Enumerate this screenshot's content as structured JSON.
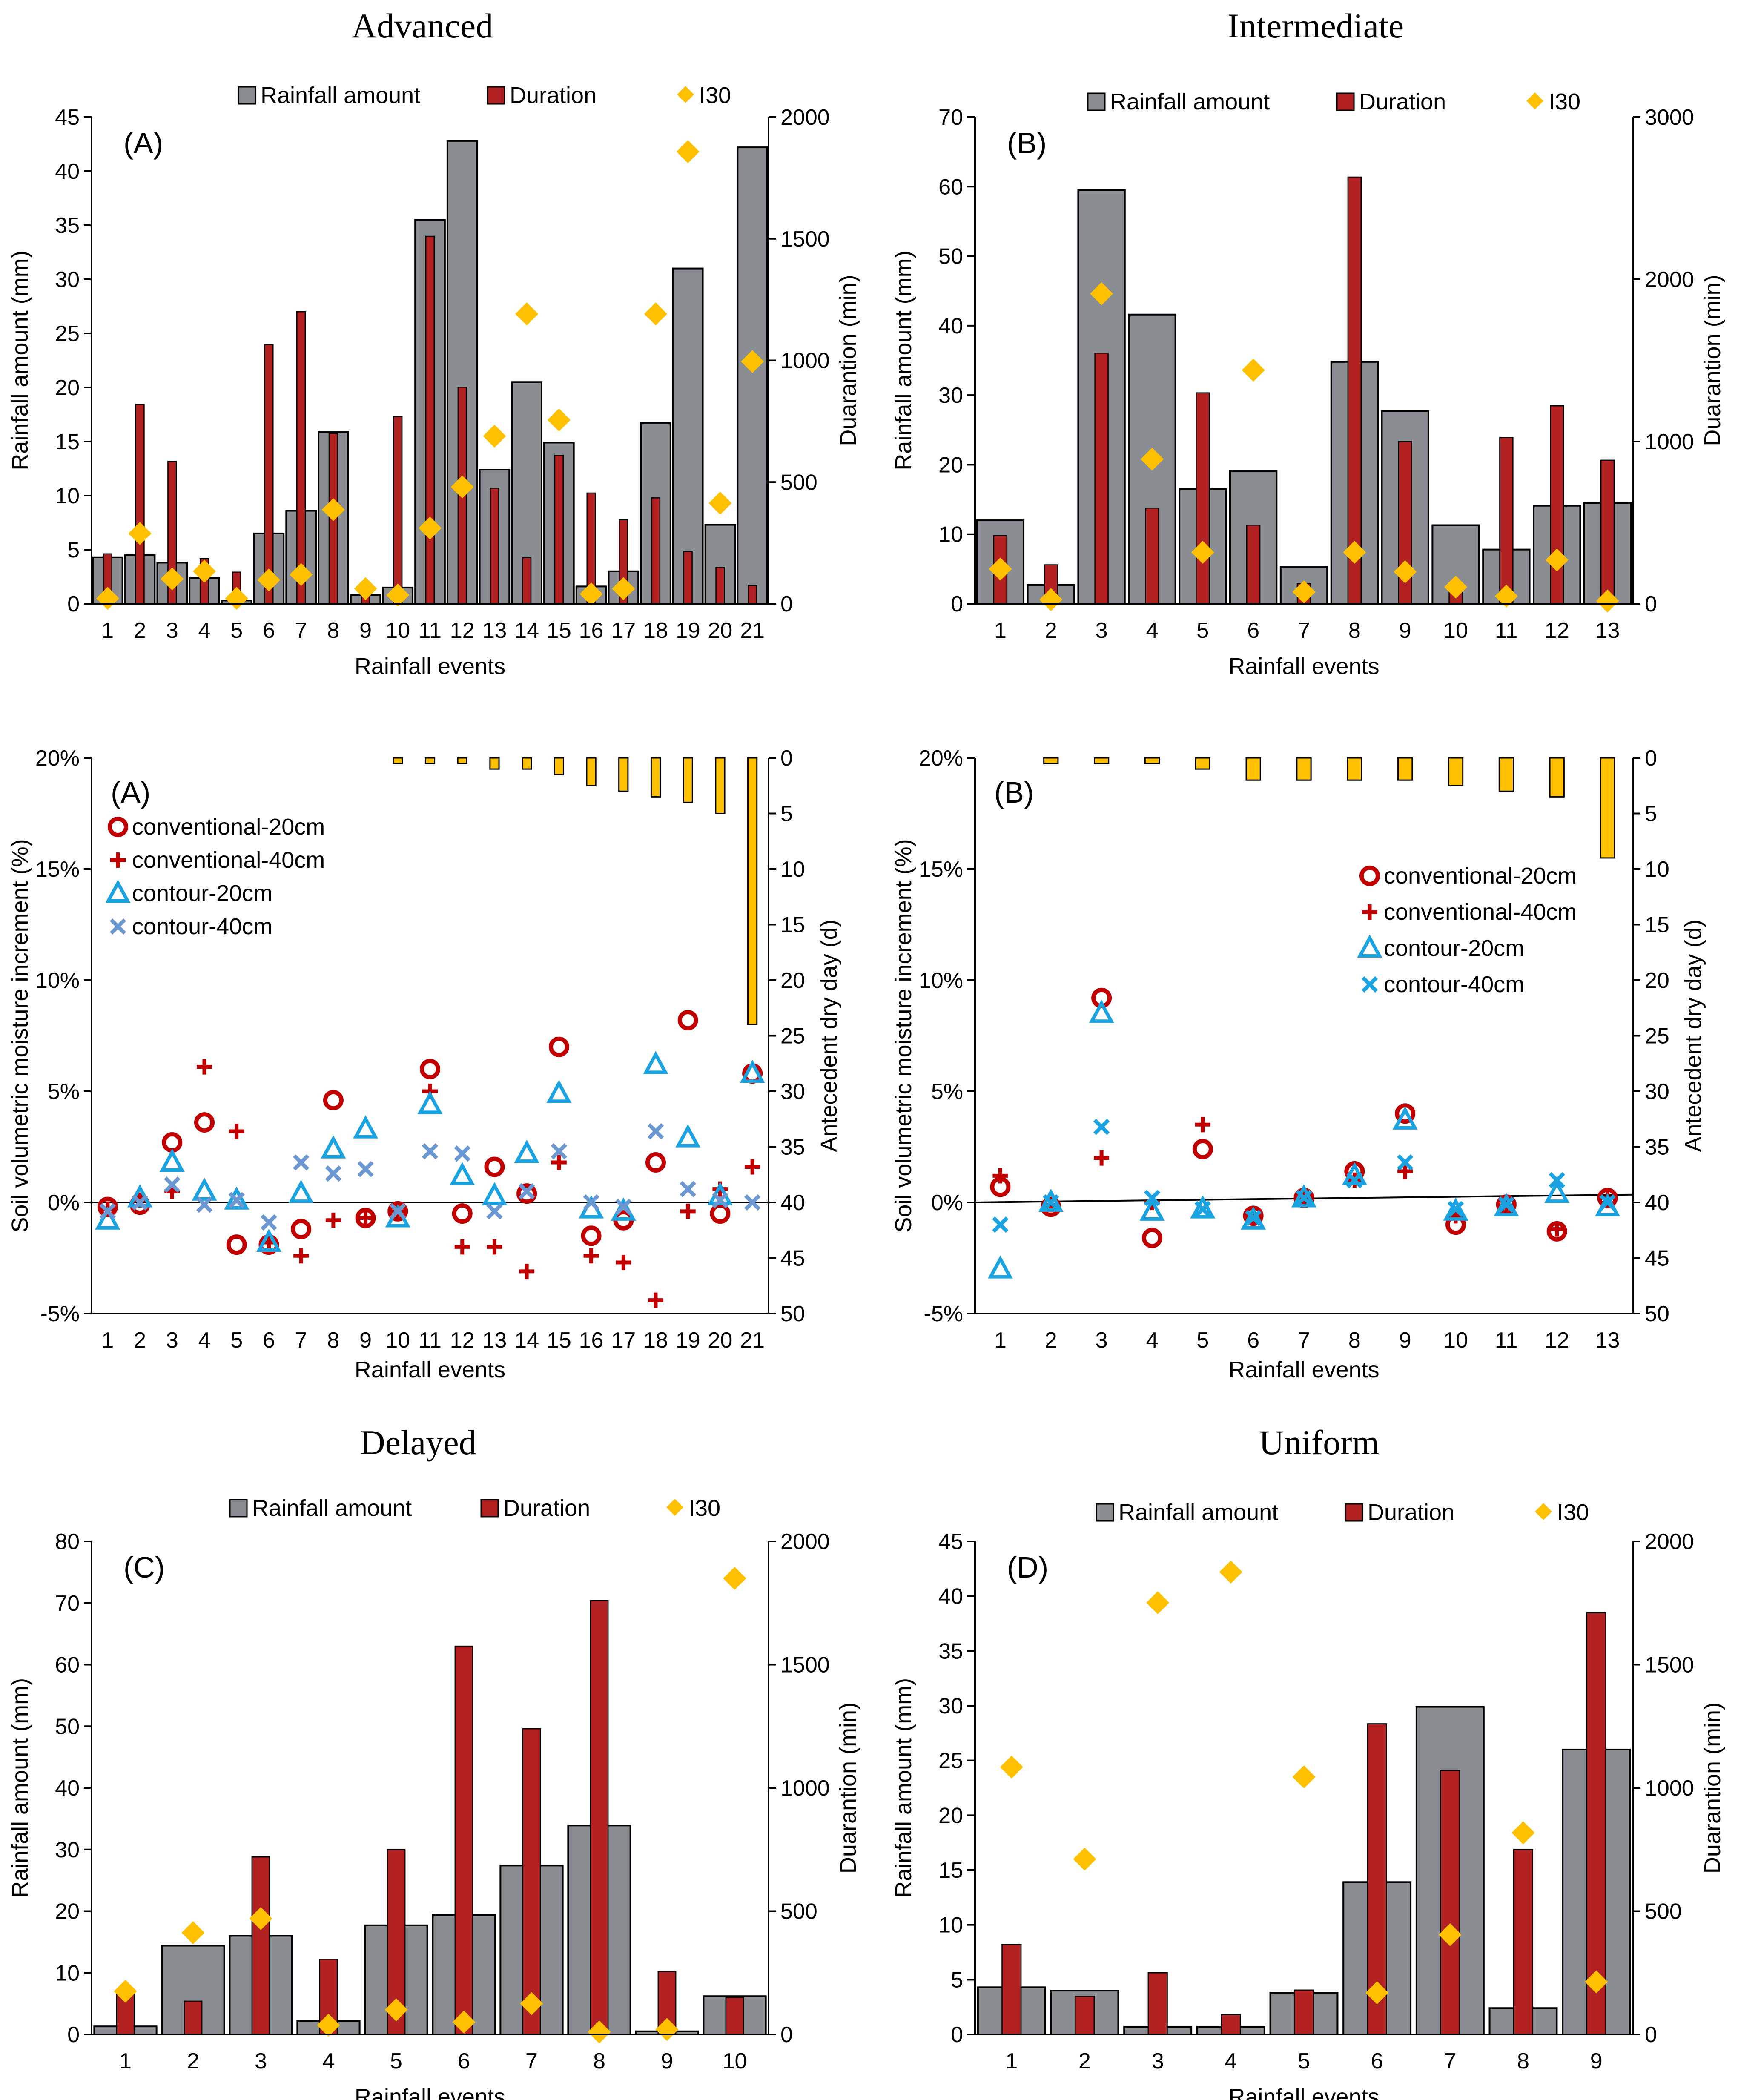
{
  "section_titles": {
    "advanced": "Advanced",
    "intermediate": "Intermediate",
    "delayed": "Delayed",
    "uniform": "Uniform"
  },
  "colors": {
    "rainfall_fill": "#8a8d91",
    "duration_fill": "#b22222",
    "i30_marker": "#ffc000",
    "add_bar": "#ffc000",
    "conv20": "#c00000",
    "conv40": "#c00000",
    "cont20": "#1aa3e0",
    "cont40_A": "#6b97d2",
    "cont40_B": "#1aa3e0"
  },
  "chart_data": [
    {
      "id": "A-rain",
      "type": "bar",
      "panel_label": "(A)",
      "title": "Advanced",
      "xlabel": "Rainfall events",
      "ylabel": "Rainfall amount (mm)",
      "y2label": "Duarantion (min)",
      "categories": [
        "1",
        "2",
        "3",
        "4",
        "5",
        "6",
        "7",
        "8",
        "9",
        "10",
        "11",
        "12",
        "13",
        "14",
        "15",
        "16",
        "17",
        "18",
        "19",
        "20",
        "21"
      ],
      "ylim": [
        0,
        45
      ],
      "yticks": [
        0,
        5,
        10,
        15,
        20,
        25,
        30,
        35,
        40,
        45
      ],
      "y2lim": [
        0,
        2000
      ],
      "y2ticks": [
        0,
        500,
        1000,
        1500,
        2000
      ],
      "legend": [
        "Rainfall amount",
        "Duration",
        "I30"
      ],
      "series": [
        {
          "name": "Rainfall amount",
          "axis": "left",
          "values": [
            4.3,
            4.5,
            3.8,
            2.4,
            0.3,
            6.5,
            8.6,
            15.9,
            0.8,
            1.5,
            35.5,
            42.8,
            12.4,
            20.5,
            14.9,
            1.6,
            3.0,
            16.7,
            31.0,
            7.3,
            42.2
          ]
        },
        {
          "name": "Duration",
          "axis": "right",
          "values": [
            205,
            820,
            585,
            185,
            130,
            1065,
            1200,
            700,
            55,
            770,
            1510,
            890,
            475,
            190,
            610,
            455,
            345,
            435,
            215,
            150,
            75
          ]
        },
        {
          "name": "I30",
          "axis": "left",
          "values": [
            0.5,
            6.5,
            2.3,
            3.0,
            0.5,
            2.2,
            2.7,
            8.7,
            1.4,
            0.8,
            7.0,
            10.8,
            15.5,
            26.8,
            17.0,
            0.9,
            1.4,
            26.8,
            41.8,
            9.3,
            22.4
          ]
        }
      ]
    },
    {
      "id": "B-rain",
      "type": "bar",
      "panel_label": "(B)",
      "title": "Intermediate",
      "xlabel": "Rainfall events",
      "ylabel": "Rainfall amount (mm)",
      "y2label": "Duarantion (min)",
      "categories": [
        "1",
        "2",
        "3",
        "4",
        "5",
        "6",
        "7",
        "8",
        "9",
        "10",
        "11",
        "12",
        "13"
      ],
      "ylim": [
        0,
        70
      ],
      "yticks": [
        0,
        10,
        20,
        30,
        40,
        50,
        60,
        70
      ],
      "y2lim": [
        0,
        3000
      ],
      "y2ticks": [
        0,
        1000,
        2000,
        3000
      ],
      "legend": [
        "Rainfall amount",
        "Duration",
        "I30"
      ],
      "series": [
        {
          "name": "Rainfall amount",
          "axis": "left",
          "values": [
            12.0,
            2.7,
            59.5,
            41.6,
            16.5,
            19.1,
            5.3,
            34.8,
            27.7,
            11.3,
            7.8,
            14.1,
            14.5
          ]
        },
        {
          "name": "Duration",
          "axis": "right",
          "values": [
            420,
            240,
            1545,
            590,
            1300,
            485,
            125,
            2630,
            1000,
            85,
            1025,
            1220,
            885
          ]
        },
        {
          "name": "I30",
          "axis": "left",
          "values": [
            5.0,
            0.6,
            44.6,
            20.8,
            7.4,
            33.6,
            1.7,
            7.4,
            4.6,
            2.4,
            1.1,
            6.3,
            0.4
          ]
        }
      ]
    },
    {
      "id": "A-moist",
      "type": "scatter",
      "panel_label": "(A)",
      "title": "Advanced",
      "xlabel": "Rainfall events",
      "ylabel": "Soil volumetric moisture increment (%)",
      "y2label": "Antecedent dry day (d)",
      "categories": [
        "1",
        "2",
        "3",
        "4",
        "5",
        "6",
        "7",
        "8",
        "9",
        "10",
        "11",
        "12",
        "13",
        "14",
        "15",
        "16",
        "17",
        "18",
        "19",
        "20",
        "21"
      ],
      "ylim": [
        -5,
        20
      ],
      "yticks": [
        -5,
        0,
        5,
        10,
        15,
        20
      ],
      "ytick_labels": [
        "-5%",
        "0%",
        "5%",
        "10%",
        "15%",
        "20%"
      ],
      "y2lim": [
        0,
        50
      ],
      "y2ticks": [
        0,
        5,
        10,
        15,
        20,
        25,
        30,
        35,
        40,
        45,
        50
      ],
      "legend": [
        "conventional-20cm",
        "conventional-40cm",
        "contour-20cm",
        "contour-40cm"
      ],
      "trend": [
        [
          1,
          0.0
        ],
        [
          21,
          0.0
        ]
      ],
      "series": [
        {
          "name": "conventional-20cm",
          "marker": "circle",
          "values": [
            -0.2,
            -0.1,
            2.7,
            3.6,
            -1.9,
            -1.9,
            -1.2,
            4.6,
            -0.7,
            -0.4,
            6.0,
            -0.5,
            1.6,
            0.4,
            7.0,
            -1.5,
            -0.8,
            1.8,
            8.2,
            -0.5,
            5.8
          ]
        },
        {
          "name": "conventional-40cm",
          "marker": "plus",
          "values": [
            -0.3,
            0.1,
            0.5,
            6.1,
            3.2,
            -1.8,
            -2.4,
            -0.8,
            -0.7,
            -0.4,
            5.0,
            -2.0,
            -2.0,
            -3.1,
            1.8,
            -2.4,
            -2.7,
            -4.4,
            -0.4,
            0.6,
            1.6
          ]
        },
        {
          "name": "contour-20cm",
          "marker": "triangle",
          "values": [
            -0.8,
            0.2,
            1.8,
            0.5,
            0.1,
            -1.8,
            0.4,
            2.4,
            3.3,
            -0.7,
            4.4,
            1.2,
            0.3,
            2.2,
            4.9,
            -0.3,
            -0.4,
            6.2,
            2.9,
            0.3,
            5.8
          ]
        },
        {
          "name": "contour-40cm",
          "marker": "x",
          "values": [
            -0.4,
            0.0,
            0.8,
            -0.1,
            0.1,
            -0.9,
            1.8,
            1.3,
            1.5,
            -0.4,
            2.3,
            2.2,
            -0.4,
            0.5,
            2.3,
            0.0,
            -0.2,
            3.2,
            0.6,
            0.1,
            0.0
          ]
        },
        {
          "name": "Antecedent dry day",
          "axis": "right",
          "type": "bar",
          "values": [
            0,
            0,
            0,
            0,
            0,
            0,
            0,
            0,
            0,
            0.5,
            0.5,
            0.5,
            1,
            1,
            1.5,
            2.5,
            3,
            3.5,
            4,
            5,
            24
          ]
        }
      ]
    },
    {
      "id": "B-moist",
      "type": "scatter",
      "panel_label": "(B)",
      "title": "Intermediate",
      "xlabel": "Rainfall events",
      "ylabel": "Soil volumetric moisture increment (%)",
      "y2label": "Antecedent dry day (d)",
      "categories": [
        "1",
        "2",
        "3",
        "4",
        "5",
        "6",
        "7",
        "8",
        "9",
        "10",
        "11",
        "12",
        "13"
      ],
      "ylim": [
        -5,
        20
      ],
      "yticks": [
        -5,
        0,
        5,
        10,
        15,
        20
      ],
      "ytick_labels": [
        "-5%",
        "0%",
        "5%",
        "10%",
        "15%",
        "20%"
      ],
      "y2lim": [
        0,
        50
      ],
      "y2ticks": [
        0,
        5,
        10,
        15,
        20,
        25,
        30,
        35,
        40,
        45,
        50
      ],
      "legend": [
        "conventional-20cm",
        "conventional-40cm",
        "contour-20cm",
        "contour-40cm"
      ],
      "trend": [
        [
          1,
          0.0
        ],
        [
          13,
          0.35
        ]
      ],
      "series": [
        {
          "name": "conventional-20cm",
          "marker": "circle",
          "values": [
            0.7,
            -0.2,
            9.2,
            -1.6,
            2.4,
            -0.6,
            0.2,
            1.4,
            4.0,
            -1.0,
            -0.1,
            -1.3,
            0.2
          ]
        },
        {
          "name": "conventional-40cm",
          "marker": "plus",
          "values": [
            1.2,
            -0.1,
            2.0,
            0.0,
            3.5,
            -0.6,
            0.2,
            1.0,
            1.4,
            -0.6,
            -0.2,
            -1.2,
            0.2
          ]
        },
        {
          "name": "contour-20cm",
          "marker": "triangle",
          "values": [
            -3.0,
            0.0,
            8.5,
            -0.4,
            -0.3,
            -0.8,
            0.2,
            1.2,
            3.7,
            -0.4,
            -0.2,
            0.4,
            -0.2
          ]
        },
        {
          "name": "contour-40cm",
          "marker": "x",
          "values": [
            -1.0,
            0.0,
            3.4,
            0.2,
            -0.3,
            -0.7,
            0.2,
            1.0,
            1.8,
            -0.3,
            -0.1,
            1.0,
            0.0
          ]
        },
        {
          "name": "Antecedent dry day",
          "axis": "right",
          "type": "bar",
          "values": [
            0,
            0.5,
            0.5,
            0.5,
            1,
            2,
            2,
            2,
            2,
            2.5,
            3,
            3.5,
            9
          ]
        }
      ]
    },
    {
      "id": "C-rain",
      "type": "bar",
      "panel_label": "(C)",
      "title": "Delayed",
      "xlabel": "Rainfall events",
      "ylabel": "Rainfall amount (mm)",
      "y2label": "Duarantion (min)",
      "categories": [
        "1",
        "2",
        "3",
        "4",
        "5",
        "6",
        "7",
        "8",
        "9",
        "10"
      ],
      "ylim": [
        0,
        80
      ],
      "yticks": [
        0,
        10,
        20,
        30,
        40,
        50,
        60,
        70,
        80
      ],
      "y2lim": [
        0,
        2000
      ],
      "y2ticks": [
        0,
        500,
        1000,
        1500,
        2000
      ],
      "legend": [
        "Rainfall amount",
        "Duration",
        "I30"
      ],
      "series": [
        {
          "name": "Rainfall amount",
          "axis": "left",
          "values": [
            1.3,
            14.4,
            16.0,
            2.2,
            17.7,
            19.4,
            27.4,
            33.9,
            0.5,
            6.2
          ]
        },
        {
          "name": "Duration",
          "axis": "right",
          "values": [
            165,
            135,
            720,
            305,
            750,
            1575,
            1240,
            1760,
            255,
            150
          ]
        },
        {
          "name": "I30",
          "axis": "left",
          "values": [
            7.0,
            16.5,
            18.8,
            1.5,
            4.0,
            2.0,
            5.0,
            0.4,
            0.8,
            74.0
          ]
        }
      ]
    },
    {
      "id": "D-rain",
      "type": "bar",
      "panel_label": "(D)",
      "title": "Uniform",
      "xlabel": "Rainfall events",
      "ylabel": "Rainfall amount (mm)",
      "y2label": "Duarantion (min)",
      "categories": [
        "1",
        "2",
        "3",
        "4",
        "5",
        "6",
        "7",
        "8",
        "9"
      ],
      "ylim": [
        0,
        45
      ],
      "yticks": [
        0,
        5,
        10,
        15,
        20,
        25,
        30,
        35,
        40,
        45
      ],
      "y2lim": [
        0,
        2000
      ],
      "y2ticks": [
        0,
        500,
        1000,
        1500,
        2000
      ],
      "legend": [
        "Rainfall amount",
        "Duration",
        "I30"
      ],
      "series": [
        {
          "name": "Rainfall amount",
          "axis": "left",
          "values": [
            4.3,
            4.0,
            0.7,
            0.7,
            3.8,
            13.9,
            29.9,
            2.4,
            26.0
          ]
        },
        {
          "name": "Duration",
          "axis": "right",
          "values": [
            365,
            155,
            250,
            80,
            180,
            1260,
            1070,
            750,
            1710
          ]
        },
        {
          "name": "I30",
          "axis": "left",
          "values": [
            24.4,
            16.0,
            39.4,
            42.2,
            23.5,
            3.8,
            9.1,
            18.4,
            4.8
          ]
        }
      ]
    }
  ]
}
